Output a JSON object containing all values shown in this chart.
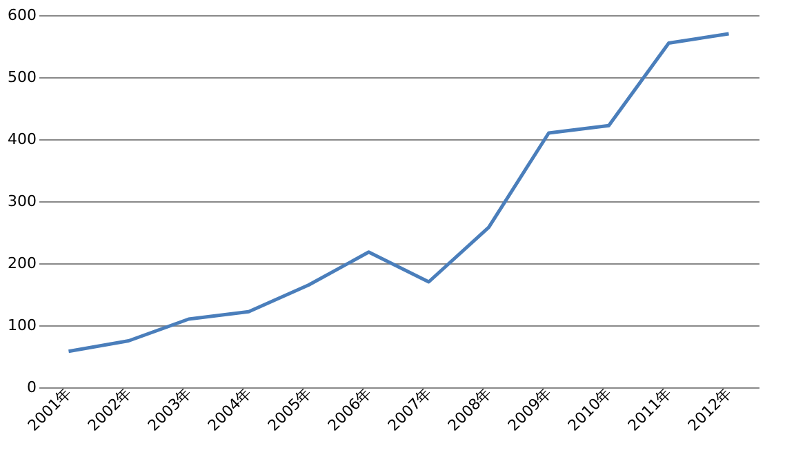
{
  "chart_data": {
    "type": "line",
    "categories": [
      "2001年",
      "2002年",
      "2003年",
      "2004年",
      "2005年",
      "2006年",
      "2007年",
      "2008年",
      "2009年",
      "2010年",
      "2011年",
      "2012年"
    ],
    "series": [
      {
        "color": "#4a7ebb",
        "values": [
          58,
          75,
          110,
          122,
          165,
          218,
          170,
          258,
          410,
          422,
          555,
          570
        ]
      }
    ],
    "ylim": [
      0,
      600
    ],
    "yticks": [
      0,
      100,
      200,
      300,
      400,
      500,
      600
    ],
    "grid": "y",
    "line_style": "solid"
  }
}
